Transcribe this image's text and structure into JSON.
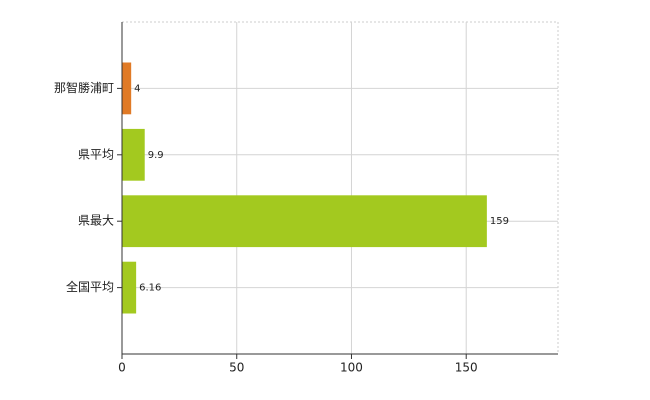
{
  "chart_data": {
    "type": "barh",
    "categories": [
      "那智勝浦町",
      "県平均",
      "県最大",
      "全国平均"
    ],
    "values": [
      4,
      9.9,
      159,
      6.16
    ],
    "colors": [
      "#e07a26",
      "#a3c91f",
      "#a3c91f",
      "#a3c91f"
    ],
    "xlim": [
      0,
      190
    ],
    "xticks": [
      0,
      50,
      100,
      150
    ],
    "grid": true
  }
}
